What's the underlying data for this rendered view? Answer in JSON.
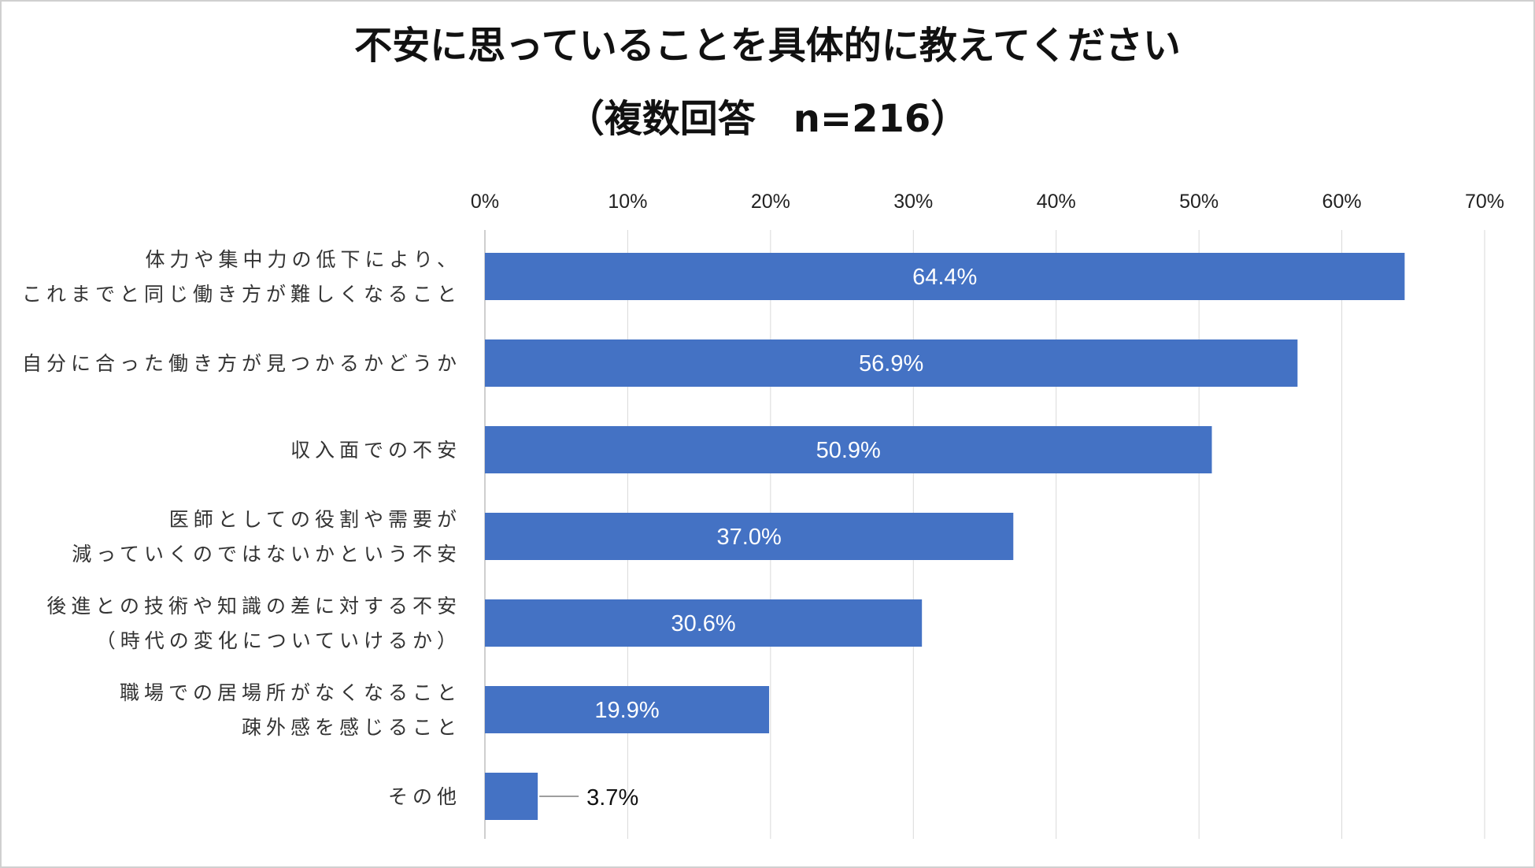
{
  "chart_data": {
    "type": "bar",
    "orientation": "horizontal",
    "title_lines": [
      "不安に思っていることを具体的に教えてください",
      "（複数回答　n=216）"
    ],
    "xlabel": "",
    "ylabel": "",
    "xlim": [
      0,
      70
    ],
    "ticks": [
      "0%",
      "10%",
      "20%",
      "30%",
      "40%",
      "50%",
      "60%",
      "70%"
    ],
    "tick_values": [
      0,
      10,
      20,
      30,
      40,
      50,
      60,
      70
    ],
    "grid": true,
    "legend": "none",
    "bar_color": "#4472C4",
    "categories": [
      [
        "体力や集中力の低下により、",
        "これまでと同じ働き方が難しくなること"
      ],
      [
        "自分に合った働き方が見つかるかどうか"
      ],
      [
        "収入面での不安"
      ],
      [
        "医師としての役割や需要が",
        "減っていくのではないかという不安"
      ],
      [
        "後進との技術や知識の差に対する不安",
        "（時代の変化についていけるか）"
      ],
      [
        "職場での居場所がなくなること",
        "疎外感を感じること"
      ],
      [
        "その他"
      ]
    ],
    "values": [
      64.4,
      56.9,
      50.9,
      37.0,
      30.6,
      19.9,
      3.7
    ],
    "value_labels": [
      "64.4%",
      "56.9%",
      "50.9%",
      "37.0%",
      "30.6%",
      "19.9%",
      "3.7%"
    ]
  }
}
